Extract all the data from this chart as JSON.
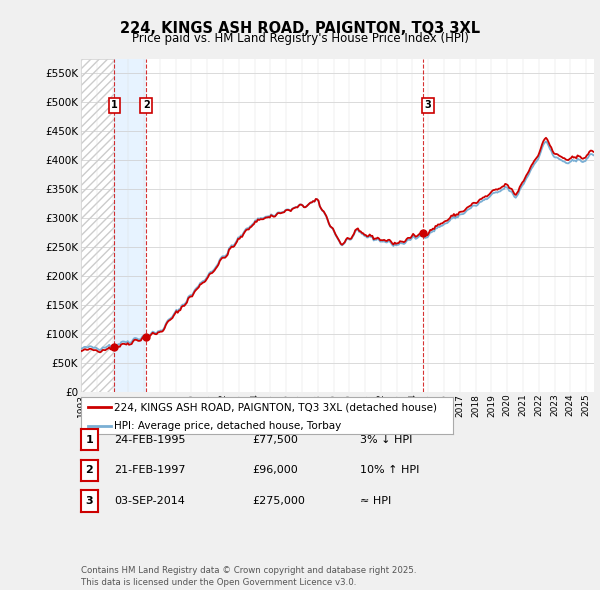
{
  "title": "224, KINGS ASH ROAD, PAIGNTON, TQ3 3XL",
  "subtitle": "Price paid vs. HM Land Registry's House Price Index (HPI)",
  "legend_label_red": "224, KINGS ASH ROAD, PAIGNTON, TQ3 3XL (detached house)",
  "legend_label_blue": "HPI: Average price, detached house, Torbay",
  "transactions": [
    {
      "num": 1,
      "date": "24-FEB-1995",
      "price": 77500,
      "rel": "3% ↓ HPI",
      "year": 1995.12
    },
    {
      "num": 2,
      "date": "21-FEB-1997",
      "price": 96000,
      "rel": "10% ↑ HPI",
      "year": 1997.12
    },
    {
      "num": 3,
      "date": "03-SEP-2014",
      "price": 275000,
      "rel": "≈ HPI",
      "year": 2014.67
    }
  ],
  "footnote": "Contains HM Land Registry data © Crown copyright and database right 2025.\nThis data is licensed under the Open Government Licence v3.0.",
  "ylim": [
    0,
    575000
  ],
  "yticks": [
    0,
    50000,
    100000,
    150000,
    200000,
    250000,
    300000,
    350000,
    400000,
    450000,
    500000,
    550000
  ],
  "background_color": "#f0f0f0",
  "plot_bg_color": "#ffffff",
  "red_color": "#cc0000",
  "blue_color": "#7aafd4",
  "blue_fill_color": "#ddeeff",
  "hatch_color": "#cccccc"
}
